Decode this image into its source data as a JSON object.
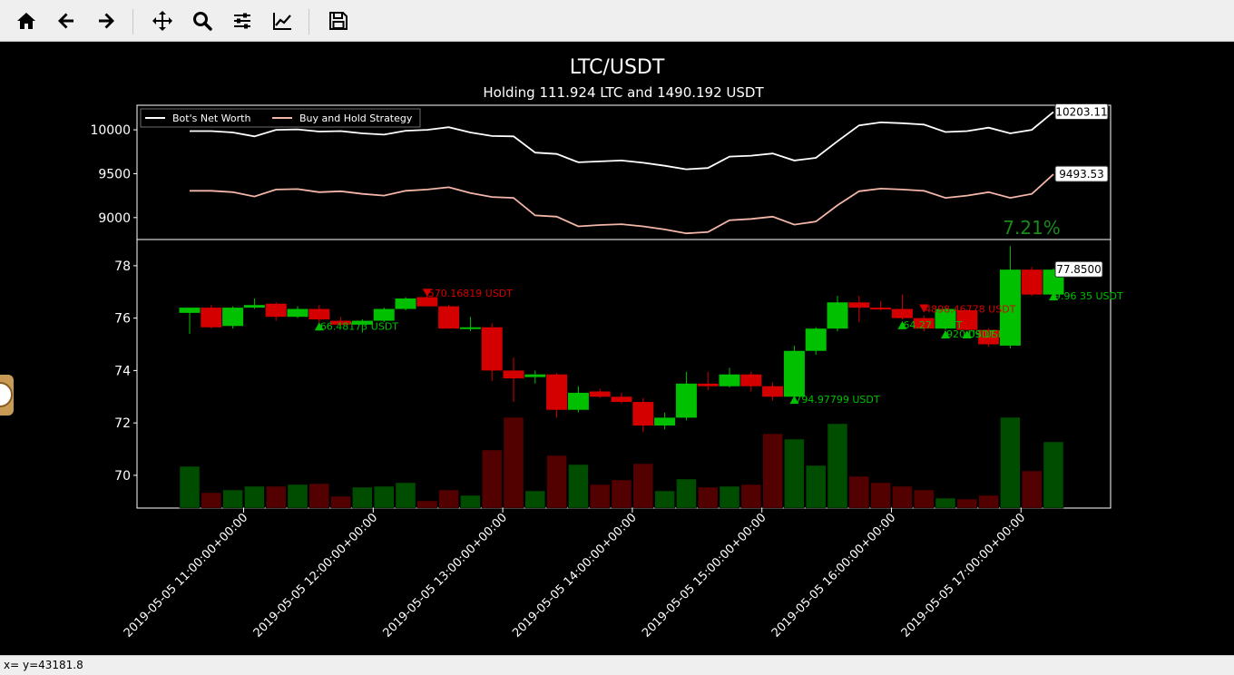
{
  "toolbar": {
    "buttons": [
      {
        "name": "home-button",
        "icon": "home-icon"
      },
      {
        "name": "back-button",
        "icon": "arrow-left-icon"
      },
      {
        "name": "forward-button",
        "icon": "arrow-right-icon"
      },
      {
        "name": "pan-button",
        "icon": "move-icon"
      },
      {
        "name": "zoom-button",
        "icon": "magnifier-icon"
      },
      {
        "name": "subplots-button",
        "icon": "sliders-icon"
      },
      {
        "name": "axes-button",
        "icon": "line-chart-icon"
      },
      {
        "name": "save-button",
        "icon": "floppy-icon"
      }
    ]
  },
  "status": {
    "text": "x= y=43181.8"
  },
  "colors": {
    "up": "#00c000",
    "down": "#d40000",
    "net_worth": "#ffffff",
    "hold": "#f4b6a8",
    "pct": "#1a8a1a"
  },
  "chart_data": {
    "title": "LTC/USDT",
    "subtitle": "Holding 111.924 LTC and 1490.192 USDT",
    "net_worth_panel": {
      "type": "line",
      "legend_position": "top-left",
      "yticks": [
        9000,
        9500,
        10000
      ],
      "ylim": [
        8750,
        10280
      ],
      "series": [
        {
          "name": "Bot's Net Worth",
          "color": "#ffffff",
          "values": [
            9985,
            9985,
            9970,
            9925,
            10000,
            10005,
            9980,
            9985,
            9960,
            9945,
            9990,
            10000,
            10030,
            9970,
            9930,
            9925,
            9740,
            9725,
            9630,
            9640,
            9650,
            9625,
            9590,
            9550,
            9565,
            9695,
            9705,
            9730,
            9650,
            9680,
            9870,
            10050,
            10085,
            10075,
            10060,
            9975,
            9985,
            10025,
            9960,
            10000,
            10203.11
          ],
          "last_label": "10203.11"
        },
        {
          "name": "Buy and Hold Strategy",
          "color": "#f4b6a8",
          "values": [
            9305,
            9305,
            9290,
            9240,
            9320,
            9325,
            9290,
            9300,
            9270,
            9250,
            9305,
            9320,
            9345,
            9280,
            9235,
            9225,
            9025,
            9010,
            8900,
            8915,
            8925,
            8900,
            8865,
            8820,
            8835,
            8970,
            8985,
            9010,
            8920,
            8955,
            9140,
            9300,
            9330,
            9320,
            9305,
            9225,
            9250,
            9290,
            9225,
            9270,
            9493.53
          ],
          "last_label": "9493.53"
        }
      ],
      "annotation": "7.21%"
    },
    "price_panel": {
      "type": "candlestick",
      "yticks": [
        70,
        72,
        74,
        76,
        78
      ],
      "ylim": [
        68.75,
        79.0
      ],
      "last_price_label": "77.8500",
      "candles": [
        {
          "o": 76.2,
          "h": 76.4,
          "l": 75.4,
          "c": 76.4
        },
        {
          "o": 76.4,
          "h": 76.5,
          "l": 75.6,
          "c": 75.65
        },
        {
          "o": 75.7,
          "h": 76.45,
          "l": 75.6,
          "c": 76.4
        },
        {
          "o": 76.4,
          "h": 76.75,
          "l": 76.35,
          "c": 76.5
        },
        {
          "o": 76.55,
          "h": 76.6,
          "l": 75.9,
          "c": 76.05
        },
        {
          "o": 76.05,
          "h": 76.45,
          "l": 76.0,
          "c": 76.35
        },
        {
          "o": 76.35,
          "h": 76.5,
          "l": 75.8,
          "c": 75.95
        },
        {
          "o": 75.9,
          "h": 76.05,
          "l": 75.7,
          "c": 75.75
        },
        {
          "o": 75.75,
          "h": 75.95,
          "l": 75.45,
          "c": 75.9
        },
        {
          "o": 75.9,
          "h": 76.4,
          "l": 75.85,
          "c": 76.35
        },
        {
          "o": 76.35,
          "h": 76.8,
          "l": 76.3,
          "c": 76.75
        },
        {
          "o": 76.8,
          "h": 76.95,
          "l": 76.45,
          "c": 76.45
        },
        {
          "o": 76.45,
          "h": 76.5,
          "l": 75.6,
          "c": 75.6
        },
        {
          "o": 75.6,
          "h": 76.05,
          "l": 75.5,
          "c": 75.65
        },
        {
          "o": 75.65,
          "h": 75.8,
          "l": 73.6,
          "c": 74.0
        },
        {
          "o": 74.0,
          "h": 74.5,
          "l": 72.8,
          "c": 73.7
        },
        {
          "o": 73.75,
          "h": 74.0,
          "l": 73.5,
          "c": 73.85
        },
        {
          "o": 73.85,
          "h": 73.9,
          "l": 72.2,
          "c": 72.5
        },
        {
          "o": 72.5,
          "h": 73.4,
          "l": 72.4,
          "c": 73.15
        },
        {
          "o": 73.2,
          "h": 73.3,
          "l": 72.95,
          "c": 73.0
        },
        {
          "o": 73.0,
          "h": 73.15,
          "l": 72.75,
          "c": 72.8
        },
        {
          "o": 72.8,
          "h": 72.95,
          "l": 71.65,
          "c": 71.9
        },
        {
          "o": 71.9,
          "h": 72.4,
          "l": 71.75,
          "c": 72.2
        },
        {
          "o": 72.2,
          "h": 73.95,
          "l": 72.1,
          "c": 73.5
        },
        {
          "o": 73.5,
          "h": 73.95,
          "l": 73.25,
          "c": 73.4
        },
        {
          "o": 73.4,
          "h": 74.1,
          "l": 73.35,
          "c": 73.85
        },
        {
          "o": 73.85,
          "h": 73.95,
          "l": 73.2,
          "c": 73.4
        },
        {
          "o": 73.4,
          "h": 73.55,
          "l": 72.85,
          "c": 73.0
        },
        {
          "o": 73.0,
          "h": 74.95,
          "l": 72.9,
          "c": 74.75
        },
        {
          "o": 74.75,
          "h": 75.65,
          "l": 74.6,
          "c": 75.6
        },
        {
          "o": 75.6,
          "h": 76.85,
          "l": 75.5,
          "c": 76.6
        },
        {
          "o": 76.6,
          "h": 76.85,
          "l": 75.85,
          "c": 76.4
        },
        {
          "o": 76.4,
          "h": 76.65,
          "l": 76.3,
          "c": 76.35
        },
        {
          "o": 76.35,
          "h": 76.9,
          "l": 75.95,
          "c": 76.0
        },
        {
          "o": 76.0,
          "h": 76.1,
          "l": 75.5,
          "c": 75.6
        },
        {
          "o": 75.6,
          "h": 76.45,
          "l": 75.55,
          "c": 76.35
        },
        {
          "o": 76.3,
          "h": 76.35,
          "l": 75.55,
          "c": 75.55
        },
        {
          "o": 75.55,
          "h": 75.6,
          "l": 74.9,
          "c": 75.0
        },
        {
          "o": 74.95,
          "h": 78.75,
          "l": 74.85,
          "c": 77.85
        },
        {
          "o": 77.85,
          "h": 77.95,
          "l": 76.85,
          "c": 76.9
        },
        {
          "o": 76.9,
          "h": 77.9,
          "l": 76.85,
          "c": 77.85
        }
      ],
      "volume_heights": [
        0.46,
        0.17,
        0.2,
        0.24,
        0.24,
        0.26,
        0.27,
        0.13,
        0.23,
        0.24,
        0.28,
        0.08,
        0.2,
        0.14,
        0.64,
        1.0,
        0.19,
        0.58,
        0.48,
        0.26,
        0.31,
        0.49,
        0.19,
        0.32,
        0.23,
        0.24,
        0.26,
        0.82,
        0.76,
        0.47,
        0.93,
        0.35,
        0.28,
        0.24,
        0.2,
        0.11,
        0.1,
        0.14,
        1.0,
        0.41,
        0.73
      ],
      "trades": [
        {
          "i": 6,
          "type": "buy",
          "price": 75.7,
          "label": "66.48173 USDT"
        },
        {
          "i": 11,
          "type": "sell",
          "price": 76.95,
          "label": "570.16819 USDT"
        },
        {
          "i": 28,
          "type": "buy",
          "price": 72.9,
          "label": "794.97799 USDT"
        },
        {
          "i": 33,
          "type": "buy",
          "price": 75.75,
          "label": "64.27 USDT"
        },
        {
          "i": 34,
          "type": "sell",
          "price": 76.35,
          "label": "4898.46778 USDT"
        },
        {
          "i": 35,
          "type": "buy",
          "price": 75.4,
          "label": "920.09 USDT"
        },
        {
          "i": 36,
          "type": "buy",
          "price": 75.4,
          "label": "USDT"
        },
        {
          "i": 40,
          "type": "buy",
          "price": 76.85,
          "label": "9.96 35 USDT"
        }
      ]
    },
    "x_axis": {
      "ticks": [
        {
          "i": 2.5,
          "label": "2019-05-05 11:00:00+00:00"
        },
        {
          "i": 8.5,
          "label": "2019-05-05 12:00:00+00:00"
        },
        {
          "i": 14.5,
          "label": "2019-05-05 13:00:00+00:00"
        },
        {
          "i": 20.5,
          "label": "2019-05-05 14:00:00+00:00"
        },
        {
          "i": 26.5,
          "label": "2019-05-05 15:00:00+00:00"
        },
        {
          "i": 32.5,
          "label": "2019-05-05 16:00:00+00:00"
        },
        {
          "i": 38.5,
          "label": "2019-05-05 17:00:00+00:00"
        }
      ]
    }
  }
}
